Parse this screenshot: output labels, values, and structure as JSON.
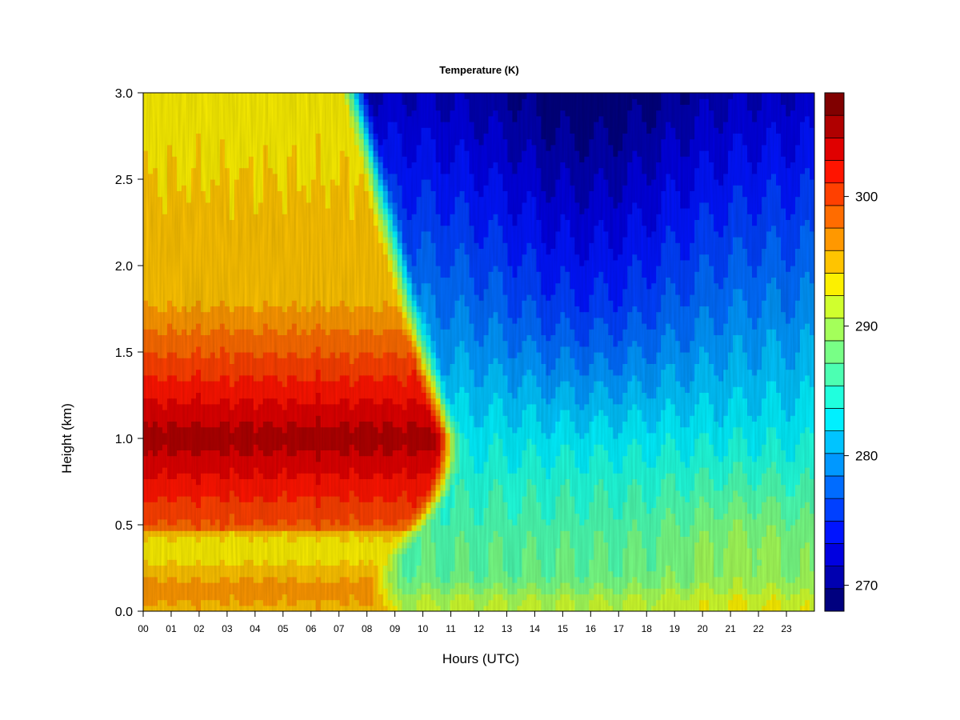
{
  "chart_data": {
    "type": "heatmap",
    "title": "Temperature (K)",
    "xlabel": "Hours (UTC)",
    "ylabel": "Height (km)",
    "x_ticks": [
      "00",
      "01",
      "02",
      "03",
      "04",
      "05",
      "06",
      "07",
      "08",
      "09",
      "10",
      "11",
      "12",
      "13",
      "14",
      "15",
      "16",
      "17",
      "18",
      "19",
      "20",
      "21",
      "22",
      "23"
    ],
    "y_ticks": [
      "0.0",
      "0.5",
      "1.0",
      "1.5",
      "2.0",
      "2.5",
      "3.0"
    ],
    "xlim": [
      0,
      24
    ],
    "ylim": [
      0,
      3
    ],
    "colorbar": {
      "levels": [
        268,
        270,
        272,
        274,
        276,
        278,
        280,
        282,
        284,
        286,
        288,
        290,
        292,
        294,
        296,
        298,
        300,
        302,
        304,
        306,
        308
      ],
      "colors": [
        "#00007f",
        "#0000b0",
        "#0000e0",
        "#0014ff",
        "#0040ff",
        "#006cff",
        "#0098ff",
        "#00c4ff",
        "#00f0ff",
        "#20ffde",
        "#4cffb2",
        "#78ff86",
        "#a4ff5a",
        "#d0ff2e",
        "#fcf000",
        "#ffc400",
        "#ff9800",
        "#ff6c00",
        "#ff4000",
        "#ff1400",
        "#e00000",
        "#b00000",
        "#800000"
      ],
      "tick_labels": [
        "270",
        "280",
        "290",
        "300"
      ],
      "tick_values": [
        270,
        280,
        290,
        300
      ]
    }
  }
}
